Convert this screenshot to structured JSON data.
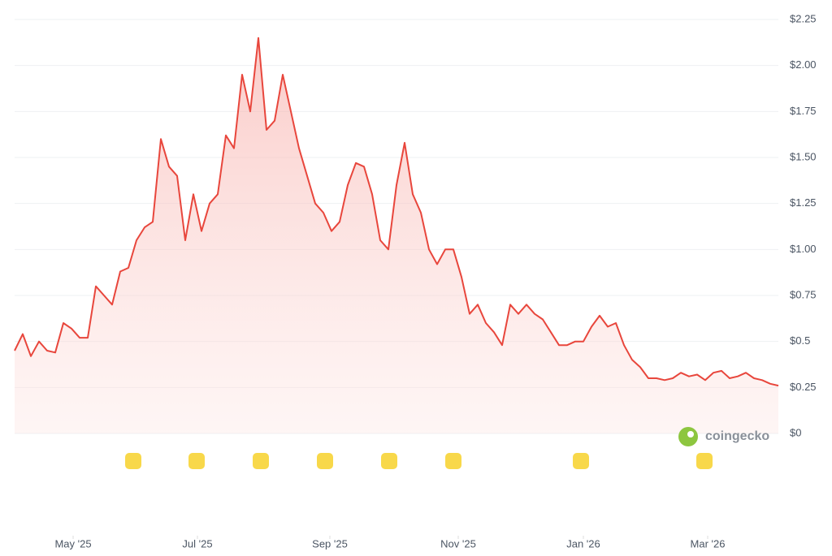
{
  "chart_data": {
    "type": "line",
    "watermark": "coingecko",
    "color": "#e8463c",
    "values": [
      0.45,
      0.54,
      0.42,
      0.5,
      0.45,
      0.44,
      0.6,
      0.57,
      0.52,
      0.52,
      0.8,
      0.75,
      0.7,
      0.88,
      0.9,
      1.05,
      1.12,
      1.15,
      1.6,
      1.45,
      1.4,
      1.05,
      1.3,
      1.1,
      1.25,
      1.3,
      1.62,
      1.55,
      1.95,
      1.75,
      2.15,
      1.65,
      1.7,
      1.95,
      1.75,
      1.55,
      1.4,
      1.25,
      1.2,
      1.1,
      1.15,
      1.35,
      1.47,
      1.45,
      1.3,
      1.05,
      1.0,
      1.35,
      1.58,
      1.3,
      1.2,
      1.0,
      0.92,
      1.0,
      1.0,
      0.85,
      0.65,
      0.7,
      0.6,
      0.55,
      0.48,
      0.7,
      0.65,
      0.7,
      0.65,
      0.62,
      0.55,
      0.48,
      0.48,
      0.5,
      0.5,
      0.58,
      0.64,
      0.58,
      0.6,
      0.48,
      0.4,
      0.36,
      0.3,
      0.3,
      0.29,
      0.3,
      0.33,
      0.31,
      0.32,
      0.29,
      0.33,
      0.34,
      0.3,
      0.31,
      0.33,
      0.3,
      0.29,
      0.27,
      0.26
    ],
    "xlim": [
      0,
      94
    ],
    "xticks": [
      {
        "value": 7.2,
        "label": "May '25"
      },
      {
        "value": 22.5,
        "label": "Jul '25"
      },
      {
        "value": 38.8,
        "label": "Sep '25"
      },
      {
        "value": 54.6,
        "label": "Nov '25"
      },
      {
        "value": 70,
        "label": "Jan '26"
      },
      {
        "value": 85.3,
        "label": "Mar '26"
      }
    ],
    "ylim": [
      0,
      2.25
    ],
    "yticks": [
      {
        "value": 0,
        "label": "$0"
      },
      {
        "value": 0.25,
        "label": "$0.25"
      },
      {
        "value": 0.5,
        "label": "$0.5"
      },
      {
        "value": 0.75,
        "label": "$0.75"
      },
      {
        "value": 1,
        "label": "$1.00"
      },
      {
        "value": 1.25,
        "label": "$1.25"
      },
      {
        "value": 1.5,
        "label": "$1.50"
      },
      {
        "value": 1.75,
        "label": "$1.75"
      },
      {
        "value": 2,
        "label": "$2.00"
      },
      {
        "value": 2.25,
        "label": "$2.25"
      }
    ],
    "grid": true
  }
}
